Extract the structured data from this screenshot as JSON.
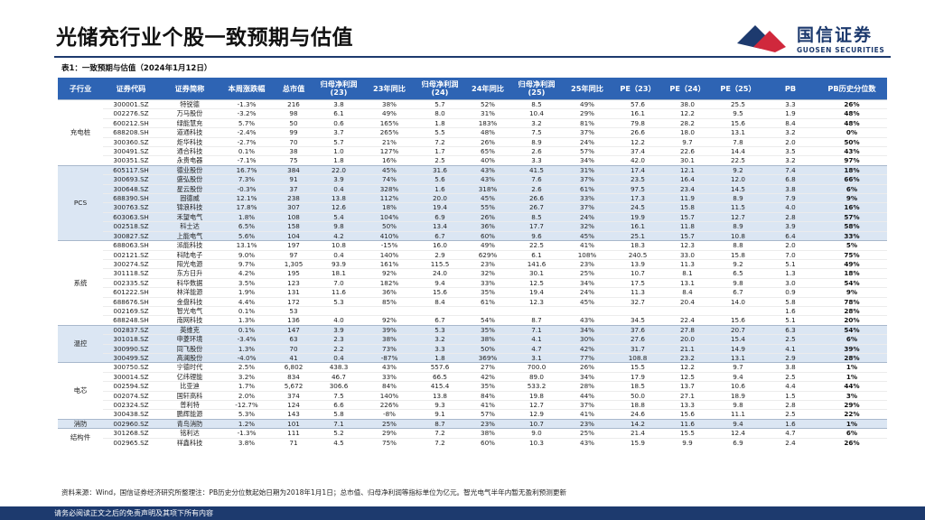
{
  "header": {
    "title": "光储充行业个股一致预期与估值",
    "logo_cn": "国信证券",
    "logo_en": "GUOSEN SECURITIES",
    "brand_colors": {
      "navy": "#1d3a6e",
      "red": "#d0283c",
      "header_blue": "#2e64b4",
      "shade_blue": "#dbe6f3"
    }
  },
  "table": {
    "caption": "表1：一致预期与估值（2024年1月12日）",
    "columns": [
      "子行业",
      "证券代码",
      "证券简称",
      "本周涨跌幅",
      "总市值",
      "归母净利润(23)",
      "23年同比",
      "归母净利润(24)",
      "24年同比",
      "归母净利润(25)",
      "25年同比",
      "PE（23）",
      "PE（24）",
      "PE（25）",
      "PB",
      "PB历史分位数"
    ],
    "groups": [
      {
        "industry": "充电桩",
        "shaded": false,
        "rows": [
          [
            "300001.SZ",
            "特锐德",
            "-1.3%",
            "216",
            "3.8",
            "38%",
            "5.7",
            "52%",
            "8.5",
            "49%",
            "57.6",
            "38.0",
            "25.5",
            "3.3",
            "26%"
          ],
          [
            "002276.SZ",
            "万马股份",
            "-3.2%",
            "98",
            "6.1",
            "49%",
            "8.0",
            "31%",
            "10.4",
            "29%",
            "16.1",
            "12.2",
            "9.5",
            "1.9",
            "48%"
          ],
          [
            "600212.SH",
            "绿能慧充",
            "5.7%",
            "50",
            "0.6",
            "165%",
            "1.8",
            "183%",
            "3.2",
            "81%",
            "79.8",
            "28.2",
            "15.6",
            "8.4",
            "48%"
          ],
          [
            "688208.SH",
            "道通科技",
            "-2.4%",
            "99",
            "3.7",
            "265%",
            "5.5",
            "48%",
            "7.5",
            "37%",
            "26.6",
            "18.0",
            "13.1",
            "3.2",
            "0%"
          ],
          [
            "300360.SZ",
            "炬华科技",
            "-2.7%",
            "70",
            "5.7",
            "21%",
            "7.2",
            "26%",
            "8.9",
            "24%",
            "12.2",
            "9.7",
            "7.8",
            "2.0",
            "50%"
          ],
          [
            "300491.SZ",
            "通合科技",
            "0.1%",
            "38",
            "1.0",
            "127%",
            "1.7",
            "65%",
            "2.6",
            "57%",
            "37.4",
            "22.6",
            "14.4",
            "3.5",
            "43%"
          ],
          [
            "300351.SZ",
            "永贵电器",
            "-7.1%",
            "75",
            "1.8",
            "16%",
            "2.5",
            "40%",
            "3.3",
            "34%",
            "42.0",
            "30.1",
            "22.5",
            "3.2",
            "97%"
          ]
        ]
      },
      {
        "industry": "PCS",
        "shaded": true,
        "rows": [
          [
            "605117.SH",
            "德业股份",
            "16.7%",
            "384",
            "22.0",
            "45%",
            "31.6",
            "43%",
            "41.5",
            "31%",
            "17.4",
            "12.1",
            "9.2",
            "7.4",
            "18%"
          ],
          [
            "300693.SZ",
            "盛弘股份",
            "7.3%",
            "91",
            "3.9",
            "74%",
            "5.6",
            "43%",
            "7.6",
            "37%",
            "23.5",
            "16.4",
            "12.0",
            "6.8",
            "66%"
          ],
          [
            "300648.SZ",
            "星云股份",
            "-0.3%",
            "37",
            "0.4",
            "328%",
            "1.6",
            "318%",
            "2.6",
            "61%",
            "97.5",
            "23.4",
            "14.5",
            "3.8",
            "6%"
          ],
          [
            "688390.SH",
            "固德威",
            "12.1%",
            "238",
            "13.8",
            "112%",
            "20.0",
            "45%",
            "26.6",
            "33%",
            "17.3",
            "11.9",
            "8.9",
            "7.9",
            "9%"
          ],
          [
            "300763.SZ",
            "锦浪科技",
            "17.8%",
            "307",
            "12.6",
            "18%",
            "19.4",
            "55%",
            "26.7",
            "37%",
            "24.5",
            "15.8",
            "11.5",
            "4.0",
            "16%"
          ],
          [
            "603063.SH",
            "禾望电气",
            "1.8%",
            "108",
            "5.4",
            "104%",
            "6.9",
            "26%",
            "8.5",
            "24%",
            "19.9",
            "15.7",
            "12.7",
            "2.8",
            "57%"
          ],
          [
            "002518.SZ",
            "科士达",
            "6.5%",
            "158",
            "9.8",
            "50%",
            "13.4",
            "36%",
            "17.7",
            "32%",
            "16.1",
            "11.8",
            "8.9",
            "3.9",
            "58%"
          ],
          [
            "300827.SZ",
            "上能电气",
            "5.6%",
            "104",
            "4.2",
            "410%",
            "6.7",
            "60%",
            "9.6",
            "45%",
            "25.1",
            "15.7",
            "10.8",
            "6.4",
            "33%"
          ]
        ]
      },
      {
        "industry": "系统",
        "shaded": false,
        "rows": [
          [
            "688063.SH",
            "派能科技",
            "13.1%",
            "197",
            "10.8",
            "-15%",
            "16.0",
            "49%",
            "22.5",
            "41%",
            "18.3",
            "12.3",
            "8.8",
            "2.0",
            "5%"
          ],
          [
            "002121.SZ",
            "科陆电子",
            "9.0%",
            "97",
            "0.4",
            "140%",
            "2.9",
            "629%",
            "6.1",
            "108%",
            "240.5",
            "33.0",
            "15.8",
            "7.0",
            "75%"
          ],
          [
            "300274.SZ",
            "阳光电源",
            "9.7%",
            "1,305",
            "93.9",
            "161%",
            "115.5",
            "23%",
            "141.6",
            "23%",
            "13.9",
            "11.3",
            "9.2",
            "5.1",
            "49%"
          ],
          [
            "301118.SZ",
            "东方日升",
            "4.2%",
            "195",
            "18.1",
            "92%",
            "24.0",
            "32%",
            "30.1",
            "25%",
            "10.7",
            "8.1",
            "6.5",
            "1.3",
            "18%"
          ],
          [
            "002335.SZ",
            "科华数据",
            "3.5%",
            "123",
            "7.0",
            "182%",
            "9.4",
            "33%",
            "12.5",
            "34%",
            "17.5",
            "13.1",
            "9.8",
            "3.0",
            "54%"
          ],
          [
            "601222.SH",
            "林洋能源",
            "1.9%",
            "131",
            "11.6",
            "36%",
            "15.6",
            "35%",
            "19.4",
            "24%",
            "11.3",
            "8.4",
            "6.7",
            "0.9",
            "9%"
          ],
          [
            "688676.SH",
            "金盘科技",
            "4.4%",
            "172",
            "5.3",
            "85%",
            "8.4",
            "61%",
            "12.3",
            "45%",
            "32.7",
            "20.4",
            "14.0",
            "5.8",
            "78%"
          ],
          [
            "002169.SZ",
            "智光电气",
            "0.1%",
            "53",
            "",
            "",
            "",
            "",
            "",
            "",
            "",
            "",
            "",
            "1.6",
            "28%"
          ],
          [
            "688248.SH",
            "南网科技",
            "1.3%",
            "136",
            "4.0",
            "92%",
            "6.7",
            "54%",
            "8.7",
            "43%",
            "34.5",
            "22.4",
            "15.6",
            "5.1",
            "20%"
          ]
        ]
      },
      {
        "industry": "温控",
        "shaded": true,
        "rows": [
          [
            "002837.SZ",
            "英维克",
            "0.1%",
            "147",
            "3.9",
            "39%",
            "5.3",
            "35%",
            "7.1",
            "34%",
            "37.6",
            "27.8",
            "20.7",
            "6.3",
            "54%"
          ],
          [
            "301018.SZ",
            "申菱环境",
            "-3.4%",
            "63",
            "2.3",
            "38%",
            "3.2",
            "38%",
            "4.1",
            "30%",
            "27.6",
            "20.0",
            "15.4",
            "2.5",
            "6%"
          ],
          [
            "300990.SZ",
            "同飞股份",
            "1.3%",
            "70",
            "2.2",
            "73%",
            "3.3",
            "50%",
            "4.7",
            "42%",
            "31.7",
            "21.1",
            "14.9",
            "4.1",
            "39%"
          ],
          [
            "300499.SZ",
            "高澜股份",
            "-4.0%",
            "41",
            "0.4",
            "-87%",
            "1.8",
            "369%",
            "3.1",
            "77%",
            "108.8",
            "23.2",
            "13.1",
            "2.9",
            "28%"
          ]
        ]
      },
      {
        "industry": "电芯",
        "shaded": false,
        "rows": [
          [
            "300750.SZ",
            "宁德时代",
            "2.5%",
            "6,802",
            "438.3",
            "43%",
            "557.6",
            "27%",
            "700.0",
            "26%",
            "15.5",
            "12.2",
            "9.7",
            "3.8",
            "1%"
          ],
          [
            "300014.SZ",
            "亿纬锂能",
            "3.2%",
            "834",
            "46.7",
            "33%",
            "66.5",
            "42%",
            "89.0",
            "34%",
            "17.9",
            "12.5",
            "9.4",
            "2.5",
            "1%"
          ],
          [
            "002594.SZ",
            "比亚迪",
            "1.7%",
            "5,672",
            "306.6",
            "84%",
            "415.4",
            "35%",
            "533.2",
            "28%",
            "18.5",
            "13.7",
            "10.6",
            "4.4",
            "44%"
          ],
          [
            "002074.SZ",
            "国轩高科",
            "2.0%",
            "374",
            "7.5",
            "140%",
            "13.8",
            "84%",
            "19.8",
            "44%",
            "50.0",
            "27.1",
            "18.9",
            "1.5",
            "3%"
          ],
          [
            "002324.SZ",
            "普利特",
            "-12.7%",
            "124",
            "6.6",
            "226%",
            "9.3",
            "41%",
            "12.7",
            "37%",
            "18.8",
            "13.3",
            "9.8",
            "2.8",
            "29%"
          ],
          [
            "300438.SZ",
            "鹏辉能源",
            "5.3%",
            "143",
            "5.8",
            "-8%",
            "9.1",
            "57%",
            "12.9",
            "41%",
            "24.6",
            "15.6",
            "11.1",
            "2.5",
            "22%"
          ]
        ]
      },
      {
        "industry": "消防",
        "shaded": true,
        "rows": [
          [
            "002960.SZ",
            "青鸟消防",
            "1.2%",
            "101",
            "7.1",
            "25%",
            "8.7",
            "23%",
            "10.7",
            "23%",
            "14.2",
            "11.6",
            "9.4",
            "1.6",
            "1%"
          ]
        ]
      },
      {
        "industry": "结构件",
        "shaded": false,
        "rows": [
          [
            "301268.SZ",
            "铭利达",
            "-1.3%",
            "111",
            "5.2",
            "29%",
            "7.2",
            "38%",
            "9.0",
            "25%",
            "21.4",
            "15.5",
            "12.4",
            "4.7",
            "6%"
          ],
          [
            "002965.SZ",
            "祥鑫科技",
            "3.8%",
            "71",
            "4.5",
            "75%",
            "7.2",
            "60%",
            "10.3",
            "43%",
            "15.9",
            "9.9",
            "6.9",
            "2.4",
            "26%"
          ]
        ]
      }
    ]
  },
  "footnote": "资料来源：Wind，国信证券经济研究所整理注：PB历史分位数起始日期为2018年1月1日；总市值、归母净利润等指标单位为亿元。智光电气半年内暂无盈利预测更新",
  "footer": {
    "disclaimer": "请务必阅读正文之后的免责声明及其项下所有内容"
  }
}
